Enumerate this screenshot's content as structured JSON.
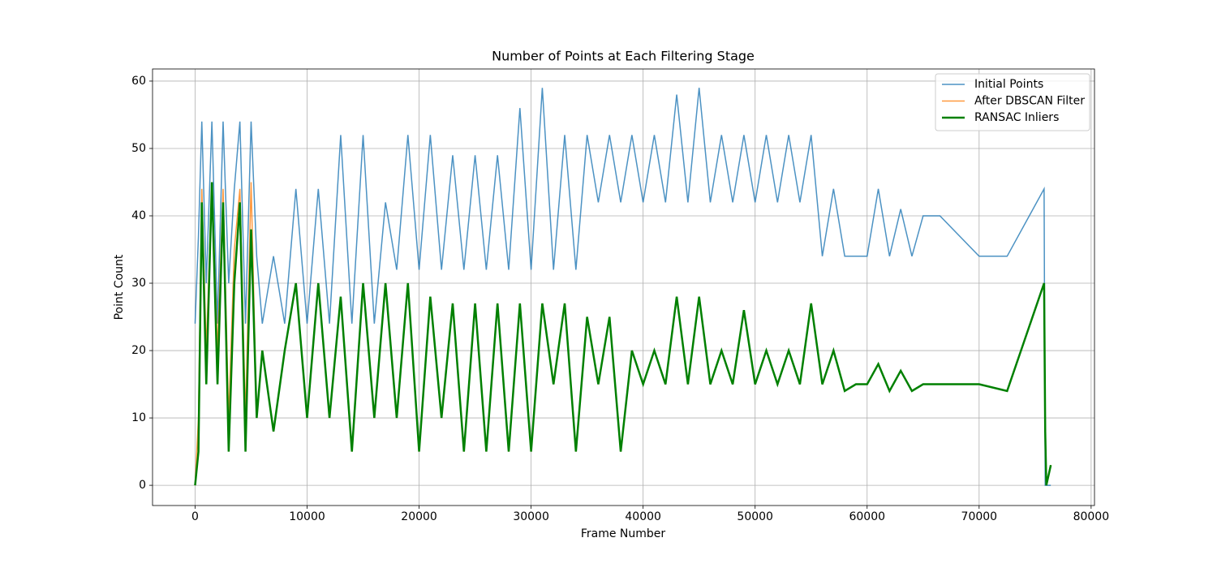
{
  "chart_data": {
    "type": "line",
    "title": "Number of Points at Each Filtering Stage",
    "xlabel": "Frame Number",
    "ylabel": "Point Count",
    "x": [
      0,
      300,
      600,
      1000,
      1500,
      2000,
      2500,
      3000,
      3500,
      4000,
      4500,
      5000,
      5500,
      6000,
      7000,
      8000,
      9000,
      10000,
      11000,
      12000,
      13000,
      14000,
      15000,
      16000,
      17000,
      18000,
      19000,
      20000,
      21000,
      22000,
      23000,
      24000,
      25000,
      26000,
      27000,
      28000,
      29000,
      30000,
      31000,
      32000,
      33000,
      34000,
      35000,
      36000,
      37000,
      38000,
      39000,
      40000,
      41000,
      42000,
      43000,
      44000,
      45000,
      46000,
      47000,
      48000,
      49000,
      50000,
      51000,
      52000,
      53000,
      54000,
      55000,
      56000,
      57000,
      58000,
      59000,
      60000,
      61000,
      62000,
      63000,
      64000,
      65000,
      66500,
      70000,
      72500,
      75800,
      75900,
      76000,
      76400
    ],
    "series": [
      {
        "name": "Initial Points",
        "color": "#1f77b4",
        "alpha": 0.8,
        "linewidth": 1.5,
        "values": [
          24,
          37,
          54,
          30,
          54,
          24,
          54,
          30,
          44,
          54,
          24,
          54,
          34,
          24,
          34,
          24,
          44,
          24,
          44,
          24,
          52,
          24,
          52,
          24,
          42,
          32,
          52,
          32,
          52,
          32,
          49,
          32,
          49,
          32,
          49,
          32,
          56,
          32,
          59,
          32,
          52,
          32,
          52,
          42,
          52,
          42,
          52,
          42,
          52,
          42,
          58,
          42,
          59,
          42,
          52,
          42,
          52,
          42,
          52,
          42,
          52,
          42,
          52,
          34,
          44,
          34,
          34,
          34,
          44,
          34,
          41,
          34,
          40,
          40,
          34,
          34,
          44,
          0,
          0,
          0
        ]
      },
      {
        "name": "After DBSCAN Filter",
        "color": "#ff7f0e",
        "alpha": 0.8,
        "linewidth": 1.5,
        "values": [
          0,
          10,
          44,
          20,
          45,
          20,
          44,
          10,
          35,
          44,
          10,
          45,
          10,
          20,
          8,
          20,
          30,
          10,
          30,
          10,
          28,
          5,
          30,
          10,
          30,
          10,
          30,
          5,
          28,
          10,
          27,
          5,
          27,
          5,
          27,
          5,
          27,
          5,
          27,
          15,
          27,
          5,
          25,
          15,
          25,
          5,
          20,
          15,
          20,
          15,
          28,
          15,
          28,
          15,
          20,
          15,
          26,
          15,
          20,
          15,
          20,
          15,
          27,
          15,
          20,
          14,
          15,
          15,
          18,
          14,
          17,
          14,
          15,
          15,
          15,
          14,
          30,
          8,
          0,
          3
        ]
      },
      {
        "name": "RANSAC Inliers",
        "color": "#008000",
        "alpha": 1,
        "linewidth": 2.5,
        "values": [
          0,
          5,
          42,
          15,
          45,
          15,
          42,
          5,
          30,
          42,
          5,
          38,
          10,
          20,
          8,
          20,
          30,
          10,
          30,
          10,
          28,
          5,
          30,
          10,
          30,
          10,
          30,
          5,
          28,
          10,
          27,
          5,
          27,
          5,
          27,
          5,
          27,
          5,
          27,
          15,
          27,
          5,
          25,
          15,
          25,
          5,
          20,
          15,
          20,
          15,
          28,
          15,
          28,
          15,
          20,
          15,
          26,
          15,
          20,
          15,
          20,
          15,
          27,
          15,
          20,
          14,
          15,
          15,
          18,
          14,
          17,
          14,
          15,
          15,
          15,
          14,
          30,
          8,
          0,
          3
        ]
      }
    ],
    "xlim": [
      -3800,
      80300
    ],
    "ylim": [
      -3,
      61.8
    ],
    "xticks": [
      0,
      10000,
      20000,
      30000,
      40000,
      50000,
      60000,
      70000,
      80000
    ],
    "yticks": [
      0,
      10,
      20,
      30,
      40,
      50,
      60
    ],
    "grid": true,
    "legend": "upper right"
  }
}
